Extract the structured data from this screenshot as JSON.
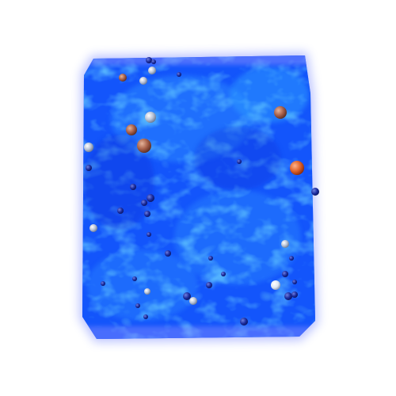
{
  "scene": {
    "background": "#ffffff",
    "volume_colors": {
      "deep": "#0a3cf0",
      "mid": "#1f6bff",
      "bright": "#2fb6ff",
      "cyan": "#39e0e8",
      "edge": "#7f8cff"
    },
    "particle_colors": {
      "navy": "#1a2a9c",
      "grey": "#b9c3d6",
      "orange": "#e0642a",
      "pale": "#e9eef7"
    }
  }
}
